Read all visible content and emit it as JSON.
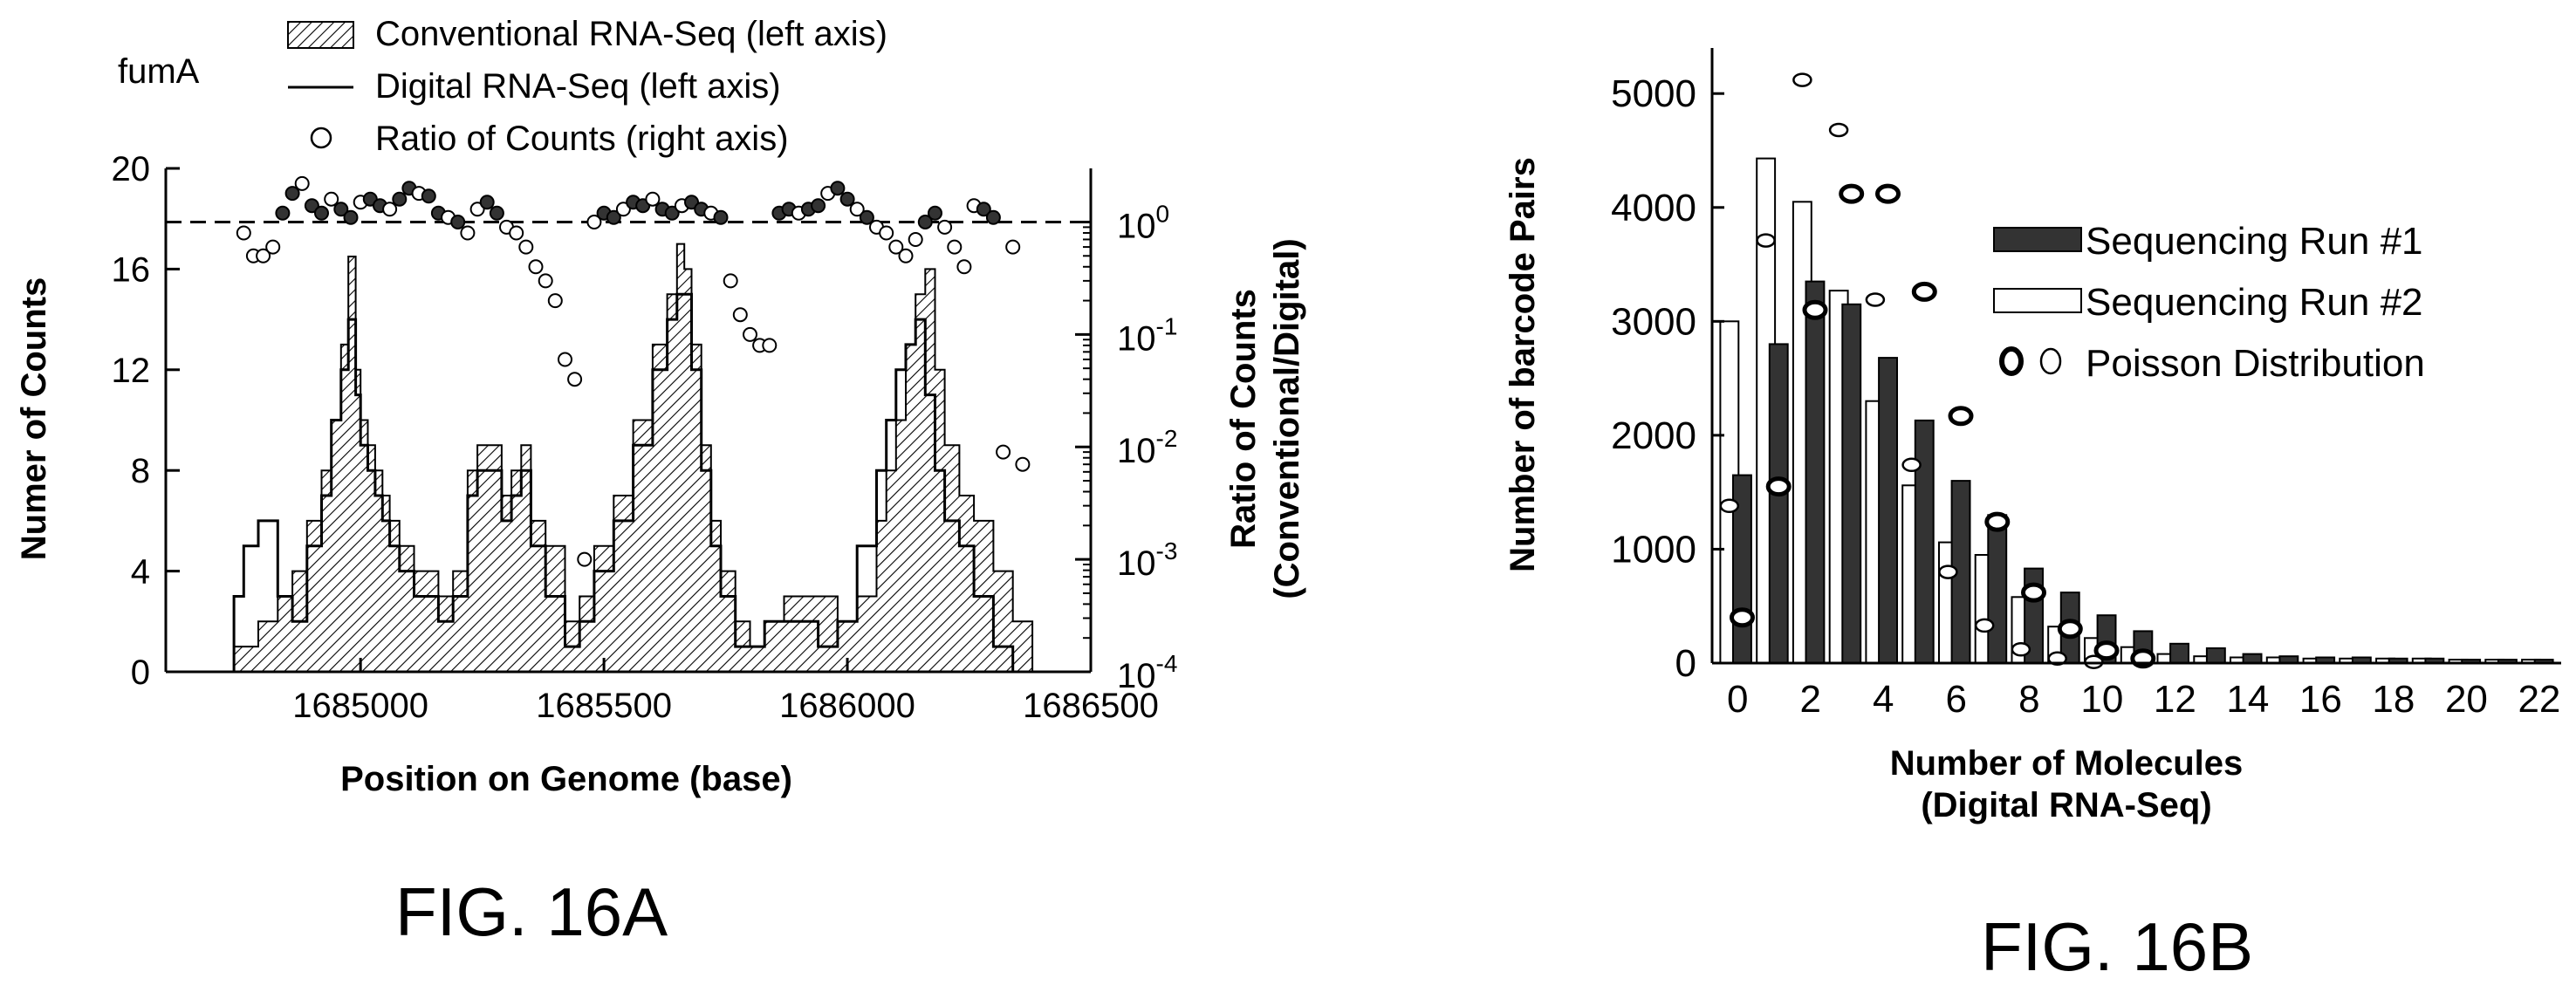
{
  "chart_data": [
    {
      "type": "area",
      "figure_label": "FIG. 16A",
      "gene_label": "fumA",
      "xlabel": "Position on Genome (base)",
      "ylabel": "Numer of Counts",
      "y2label_line1": "Ratio of Counts",
      "y2label_line2": "(Conventional/Digital)",
      "xlim": [
        1684600,
        1686500
      ],
      "ylim": [
        0,
        20
      ],
      "y2lim": [
        0.0001,
        3
      ],
      "y2scale": "log",
      "xticks": [
        1685000,
        1685500,
        1686000,
        1686500
      ],
      "xtick_labels": [
        "1685000",
        "1685500",
        "1686000",
        "1686500"
      ],
      "yticks": [
        0,
        4,
        8,
        12,
        16,
        20
      ],
      "ytick_labels": [
        "0",
        "4",
        "8",
        "12",
        "16",
        "20"
      ],
      "y2ticks": [
        0.0001,
        0.001,
        0.01,
        0.1,
        1
      ],
      "y2tick_base": [
        "10",
        "10",
        "10",
        "10",
        "10"
      ],
      "y2tick_exp": [
        "-4",
        "-3",
        "-2",
        "-1",
        "0"
      ],
      "reference_line_y2": 1,
      "legend_position": "top",
      "legend": [
        "Conventional RNA-Seq (left axis)",
        "Digital RNA-Seq (left axis)",
        "Ratio of Counts (right axis)"
      ],
      "series": [
        {
          "name": "Conventional RNA-Seq (left axis)",
          "style": "hatched-area",
          "x": [
            1684740,
            1684790,
            1684830,
            1684860,
            1684890,
            1684920,
            1684940,
            1684960,
            1684975,
            1684990,
            1685000,
            1685015,
            1685030,
            1685045,
            1685060,
            1685080,
            1685110,
            1685160,
            1685190,
            1685220,
            1685240,
            1685260,
            1685290,
            1685310,
            1685330,
            1685350,
            1685380,
            1685420,
            1685450,
            1685480,
            1685520,
            1685560,
            1685600,
            1685630,
            1685650,
            1685665,
            1685680,
            1685700,
            1685720,
            1685740,
            1685770,
            1685800,
            1685830,
            1685870,
            1685900,
            1685940,
            1685980,
            1686020,
            1686060,
            1686080,
            1686100,
            1686120,
            1686140,
            1686160,
            1686180,
            1686200,
            1686230,
            1686260,
            1686300,
            1686340,
            1686380
          ],
          "values": [
            1,
            2,
            3,
            4,
            6,
            8,
            10,
            13,
            16.5,
            12,
            10,
            9,
            8,
            7,
            6,
            5,
            4,
            3,
            4,
            8,
            9,
            9,
            7,
            8,
            9,
            6,
            5,
            2,
            3,
            5,
            7,
            10,
            13,
            15,
            17,
            16,
            13,
            9,
            6,
            4,
            2,
            1,
            2,
            3,
            3,
            3,
            2,
            3,
            6,
            8,
            10,
            13,
            15,
            16,
            12,
            9,
            7,
            6,
            4,
            2,
            0
          ]
        },
        {
          "name": "Digital RNA-Seq (left axis)",
          "style": "step-line",
          "x": [
            1684740,
            1684760,
            1684790,
            1684830,
            1684860,
            1684890,
            1684920,
            1684940,
            1684960,
            1684975,
            1684990,
            1685000,
            1685015,
            1685030,
            1685045,
            1685060,
            1685080,
            1685110,
            1685160,
            1685190,
            1685220,
            1685240,
            1685260,
            1685290,
            1685310,
            1685330,
            1685350,
            1685380,
            1685420,
            1685450,
            1685480,
            1685520,
            1685560,
            1685600,
            1685630,
            1685650,
            1685665,
            1685680,
            1685700,
            1685720,
            1685740,
            1685770,
            1685800,
            1685830,
            1685870,
            1685900,
            1685940,
            1685980,
            1686020,
            1686060,
            1686080,
            1686100,
            1686120,
            1686140,
            1686160,
            1686180,
            1686200,
            1686230,
            1686260,
            1686300,
            1686340,
            1686380
          ],
          "values": [
            3,
            5,
            6,
            3,
            2,
            5,
            7,
            10,
            12,
            14,
            11,
            9,
            8,
            7,
            6,
            5,
            4,
            3,
            2,
            3,
            7,
            8,
            8,
            6,
            7,
            8,
            5,
            3,
            1,
            2,
            4,
            6,
            9,
            12,
            14,
            15,
            15,
            12,
            8,
            5,
            3,
            1,
            1,
            2,
            2,
            2,
            1,
            2,
            5,
            8,
            10,
            12,
            13,
            14,
            11,
            8,
            6,
            5,
            3,
            1,
            0,
            0
          ]
        },
        {
          "name": "Ratio of Counts (right axis)",
          "style": "circles",
          "x": [
            1684760,
            1684780,
            1684800,
            1684820,
            1684840,
            1684860,
            1684880,
            1684900,
            1684920,
            1684940,
            1684960,
            1684980,
            1685000,
            1685020,
            1685040,
            1685060,
            1685080,
            1685100,
            1685120,
            1685140,
            1685160,
            1685180,
            1685200,
            1685220,
            1685240,
            1685260,
            1685280,
            1685300,
            1685320,
            1685340,
            1685360,
            1685380,
            1685400,
            1685420,
            1685440,
            1685460,
            1685480,
            1685500,
            1685520,
            1685540,
            1685560,
            1685580,
            1685600,
            1685620,
            1685640,
            1685660,
            1685680,
            1685700,
            1685720,
            1685740,
            1685760,
            1685780,
            1685800,
            1685820,
            1685840,
            1685860,
            1685880,
            1685900,
            1685920,
            1685940,
            1685960,
            1685980,
            1686000,
            1686020,
            1686040,
            1686060,
            1686080,
            1686100,
            1686120,
            1686140,
            1686160,
            1686180,
            1686200,
            1686220,
            1686240,
            1686260,
            1686280,
            1686300,
            1686320,
            1686340,
            1686360
          ],
          "values": [
            0.8,
            0.5,
            0.5,
            0.6,
            1.2,
            1.8,
            2.2,
            1.4,
            1.2,
            1.6,
            1.3,
            1.1,
            1.5,
            1.6,
            1.4,
            1.3,
            1.6,
            2.0,
            1.8,
            1.7,
            1.2,
            1.1,
            1.0,
            0.8,
            1.3,
            1.5,
            1.2,
            0.9,
            0.8,
            0.6,
            0.4,
            0.3,
            0.2,
            0.06,
            0.04,
            0.001,
            1.0,
            1.2,
            1.1,
            1.3,
            1.5,
            1.4,
            1.6,
            1.3,
            1.2,
            1.4,
            1.5,
            1.3,
            1.2,
            1.1,
            0.3,
            0.15,
            0.1,
            0.08,
            0.08,
            1.2,
            1.3,
            1.2,
            1.3,
            1.4,
            1.8,
            2.0,
            1.6,
            1.3,
            1.1,
            0.9,
            0.8,
            0.6,
            0.5,
            0.7,
            1.0,
            1.2,
            0.9,
            0.6,
            0.4,
            1.4,
            1.3,
            1.1,
            0.009,
            0.6,
            0.007
          ]
        }
      ]
    },
    {
      "type": "bar",
      "figure_label": "FIG. 16B",
      "xlabel_line1": "Number of Molecules",
      "xlabel_line2": "(Digital RNA-Seq)",
      "ylabel": "Number of barcode Pairs",
      "xlim": [
        -0.7,
        22.6
      ],
      "ylim": [
        0,
        5400
      ],
      "xtick_labels": [
        "0",
        "2",
        "4",
        "6",
        "8",
        "10",
        "12",
        "14",
        "16",
        "18",
        "20",
        "22"
      ],
      "xticks": [
        0,
        2,
        4,
        6,
        8,
        10,
        12,
        14,
        16,
        18,
        20,
        22
      ],
      "yticks": [
        0,
        1000,
        2000,
        3000,
        4000,
        5000
      ],
      "ytick_labels": [
        "0",
        "1000",
        "2000",
        "3000",
        "4000",
        "5000"
      ],
      "legend_position": "right",
      "legend": [
        "Sequencing Run #1",
        "Sequencing Run #2",
        "Poisson Distribution"
      ],
      "categories": [
        "0",
        "1",
        "2",
        "3",
        "4",
        "5",
        "6",
        "7",
        "8",
        "9",
        "10",
        "11",
        "12",
        "13",
        "14",
        "15",
        "16",
        "17",
        "18",
        "19",
        "20",
        "21",
        "22"
      ],
      "series": [
        {
          "name": "Sequencing Run #1",
          "color": "#333333",
          "values": [
            1650,
            2800,
            3350,
            3150,
            2680,
            2130,
            1600,
            1300,
            830,
            620,
            420,
            280,
            170,
            130,
            80,
            60,
            50,
            50,
            40,
            40,
            30,
            30,
            30
          ]
        },
        {
          "name": "Sequencing Run #2",
          "color": "#ffffff",
          "values": [
            3000,
            4430,
            4050,
            3270,
            2300,
            1560,
            1060,
            950,
            580,
            320,
            220,
            140,
            80,
            60,
            50,
            50,
            40,
            40,
            40,
            40,
            30,
            30,
            30
          ]
        },
        {
          "name": "Poisson Distribution (Run #1)",
          "style": "bold-circles",
          "values": [
            400,
            1550,
            3100,
            4120,
            4120,
            3260,
            2170,
            1240,
            620,
            300,
            110,
            40,
            0,
            0,
            0,
            0,
            0,
            0,
            0,
            0,
            0,
            0,
            0
          ]
        },
        {
          "name": "Poisson Distribution (Run #2)",
          "style": "thin-circles",
          "values": [
            1380,
            3710,
            5120,
            4680,
            3190,
            1740,
            800,
            330,
            120,
            40,
            10,
            0,
            0,
            0,
            0,
            0,
            0,
            0,
            0,
            0,
            0,
            0,
            0
          ]
        }
      ]
    }
  ]
}
